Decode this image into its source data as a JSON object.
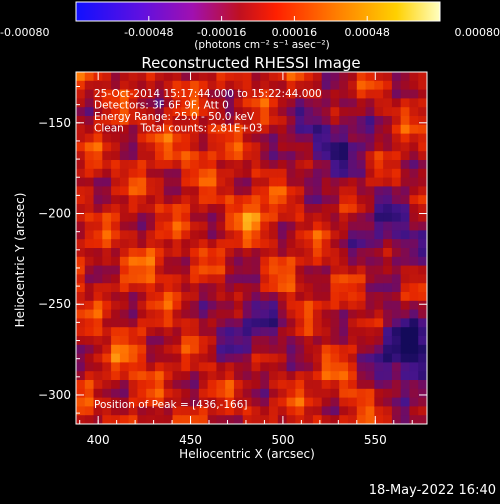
{
  "chart_data": {
    "type": "heatmap",
    "title": "Reconstructed RHESSI Image",
    "xlabel": "Heliocentric X (arcsec)",
    "ylabel": "Heliocentric Y (arcsec)",
    "xlim": [
      388,
      578
    ],
    "ylim": [
      -316,
      -122
    ],
    "x_ticks": [
      400,
      450,
      500,
      550
    ],
    "y_ticks": [
      -150,
      -200,
      -250,
      -300
    ],
    "colorbar": {
      "min": -0.0008,
      "max": 0.0008,
      "tick_values": [
        -0.0008,
        -0.00048,
        -0.00016,
        0.00016,
        0.00048,
        0.0008
      ],
      "tick_labels": [
        "-0.00080",
        "-0.00048",
        "-0.00016",
        "0.00016",
        "0.00048",
        "0.00080"
      ],
      "unit_label": "(photons cm⁻² s⁻¹ asec⁻²)"
    },
    "annotations": [
      "25-Oct-2014 15:17:44.000 to 15:22:44.000",
      "Detectors: 3F 6F 9F, Att 0",
      "Energy Range: 25.0 - 50.0 keV",
      "Clean     Total counts: 2.81E+03"
    ],
    "peak_label": "Position of Peak = [436,-166]",
    "peak": [
      436,
      -166
    ],
    "grid": false
  },
  "footer": {
    "date": "18-May-2022 16:40"
  }
}
